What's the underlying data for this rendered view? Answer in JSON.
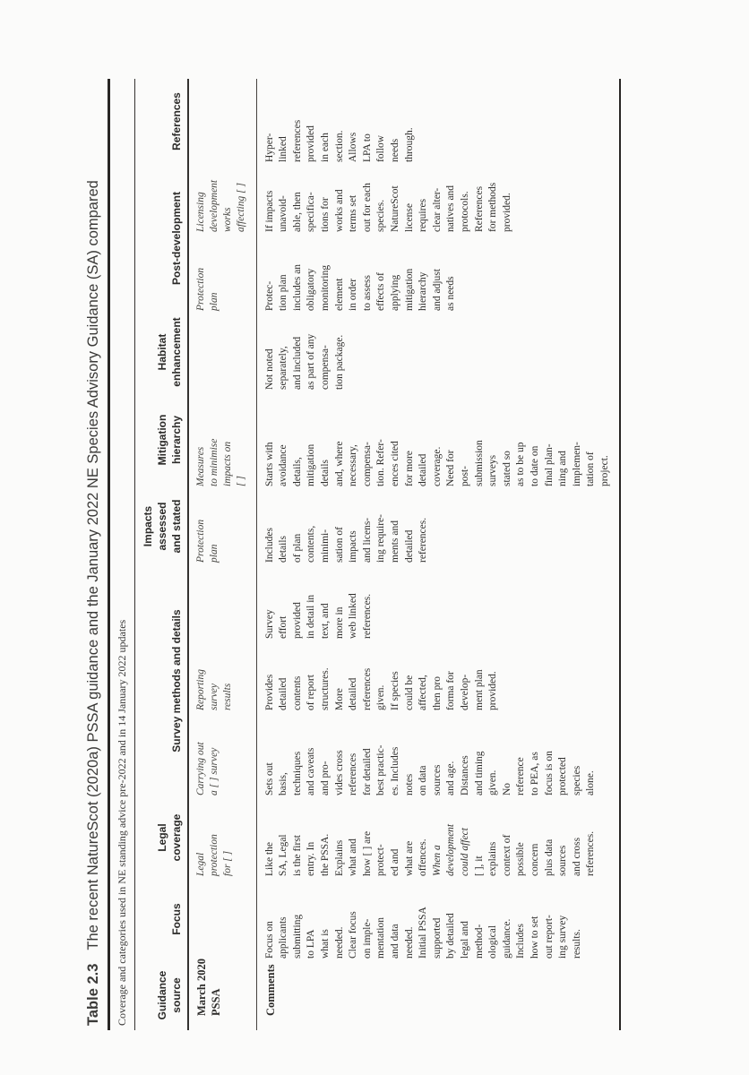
{
  "table": {
    "number": "Table 2.3",
    "title": "The recent NatureScot (2020a) PSSA guidance and the January 2022 NE Species Advisory Guidance (SA) compared",
    "subtitle": "Coverage and categories used in NE standing advice pre-2022 and in 14 January 2022 updates",
    "header": {
      "guidance_source": "Guidance\nsource",
      "focus": "Focus",
      "legal_coverage": "Legal\ncoverage",
      "survey_methods": "Survey methods and details",
      "impacts": "Impacts\nassessed\nand stated",
      "mitigation": "Mitigation\nhierarchy",
      "habitat": "Habitat\nenhancement",
      "post_development": "Post-development",
      "references": "References"
    },
    "march": {
      "label": "March 2020\nPSSA",
      "legal_coverage": [
        [
          "Legal",
          0
        ],
        [
          "protection",
          0
        ],
        [
          "for [ ]",
          0
        ]
      ],
      "survey_carrying": [
        [
          "Carrying out",
          0
        ],
        [
          "a [ ] survey",
          0
        ]
      ],
      "survey_reporting": [
        [
          "Reporting",
          0
        ],
        [
          "survey",
          0
        ],
        [
          "results",
          0
        ]
      ],
      "impacts": [
        [
          "Protection",
          0
        ],
        [
          "plan",
          0
        ]
      ],
      "mitigation": [
        [
          "Measures",
          0
        ],
        [
          "to minimise",
          0
        ],
        [
          "impacts on",
          0
        ],
        [
          "[ ]",
          0
        ]
      ],
      "post_protection": [
        [
          "Protection",
          0
        ],
        [
          "plan",
          0
        ]
      ],
      "post_licensing": [
        [
          "Licensing",
          0
        ],
        [
          "development",
          0
        ],
        [
          "works",
          0
        ],
        [
          "affecting [ ]",
          0
        ]
      ]
    },
    "comments": {
      "label": "Comments",
      "focus": [
        [
          "Focus on",
          0
        ],
        [
          "applicants",
          0
        ],
        [
          "submitting",
          0
        ],
        [
          "to LPA",
          0
        ],
        [
          "what is",
          0
        ],
        [
          "needed.",
          0
        ],
        [
          "Clear focus",
          0
        ],
        [
          "on imple-",
          0
        ],
        [
          "mentation",
          0
        ],
        [
          "and data",
          0
        ],
        [
          "needed.",
          0
        ],
        [
          "Initial PSSA",
          0
        ],
        [
          "supported",
          0
        ],
        [
          "by detailed",
          0
        ],
        [
          "legal and",
          0
        ],
        [
          "method-",
          0
        ],
        [
          "ological",
          0
        ],
        [
          "guidance.",
          0
        ],
        [
          "Includes",
          0
        ],
        [
          "how to set",
          0
        ],
        [
          "out report-",
          0
        ],
        [
          "ing survey",
          0
        ],
        [
          "results.",
          0
        ]
      ],
      "legal_coverage": [
        [
          "Like the",
          0
        ],
        [
          "SA, Legal",
          0
        ],
        [
          "is the first",
          0
        ],
        [
          "entry. In",
          0
        ],
        [
          "the PSSA.",
          0
        ],
        [
          "Explains",
          0
        ],
        [
          "what and",
          0
        ],
        [
          "how [ ] are",
          0
        ],
        [
          "protect-",
          0
        ],
        [
          "ed and",
          0
        ],
        [
          "what are",
          0
        ],
        [
          "offences.",
          0
        ],
        [
          "When a",
          1
        ],
        [
          "development",
          1
        ],
        [
          "could affect",
          1
        ],
        [
          "[ ], it",
          0
        ],
        [
          "explains",
          0
        ],
        [
          "context of",
          0
        ],
        [
          "possible",
          0
        ],
        [
          "concern",
          0
        ],
        [
          "plus data",
          0
        ],
        [
          "sources",
          0
        ],
        [
          "and cross",
          0
        ],
        [
          "references.",
          0
        ]
      ],
      "survey_carrying": [
        [
          "Sets out",
          0
        ],
        [
          "basis,",
          0
        ],
        [
          "techniques",
          0
        ],
        [
          "and caveats",
          0
        ],
        [
          "and pro-",
          0
        ],
        [
          "vides cross",
          0
        ],
        [
          "references",
          0
        ],
        [
          "for detailed",
          0
        ],
        [
          "best practic-",
          0
        ],
        [
          "es. Includes",
          0
        ],
        [
          "notes",
          0
        ],
        [
          "on data",
          0
        ],
        [
          "sources",
          0
        ],
        [
          "and age.",
          0
        ],
        [
          "Distances",
          0
        ],
        [
          "and timing",
          0
        ],
        [
          "given.",
          0
        ],
        [
          "No",
          0
        ],
        [
          "reference",
          0
        ],
        [
          "to PEA, as",
          0
        ],
        [
          "focus is on",
          0
        ],
        [
          "protected",
          0
        ],
        [
          "species",
          0
        ],
        [
          "alone.",
          0
        ]
      ],
      "survey_reporting": [
        [
          "Provides",
          0
        ],
        [
          "detailed",
          0
        ],
        [
          "contents",
          0
        ],
        [
          "of report",
          0
        ],
        [
          "structures.",
          0
        ],
        [
          "More",
          0
        ],
        [
          "detailed",
          0
        ],
        [
          "references",
          0
        ],
        [
          "given.",
          0
        ],
        [
          "If species",
          0
        ],
        [
          "could be",
          0
        ],
        [
          "affected,",
          0
        ],
        [
          "then pro",
          0
        ],
        [
          "forma for",
          0
        ],
        [
          "develop-",
          0
        ],
        [
          "ment plan",
          0
        ],
        [
          "provided.",
          0
        ]
      ],
      "survey_effort": [
        [
          "Survey",
          0
        ],
        [
          "effort",
          0
        ],
        [
          "provided",
          0
        ],
        [
          "in detail in",
          0
        ],
        [
          "text, and",
          0
        ],
        [
          "more in",
          0
        ],
        [
          "web linked",
          0
        ],
        [
          "references.",
          0
        ]
      ],
      "impacts": [
        [
          "Includes",
          0
        ],
        [
          "details",
          0
        ],
        [
          "of plan",
          0
        ],
        [
          "contents,",
          0
        ],
        [
          "minimi-",
          0
        ],
        [
          "sation of",
          0
        ],
        [
          "impacts",
          0
        ],
        [
          "and licens-",
          0
        ],
        [
          "ing require-",
          0
        ],
        [
          "ments and",
          0
        ],
        [
          "detailed",
          0
        ],
        [
          "references.",
          0
        ]
      ],
      "mitigation": [
        [
          "Starts with",
          0
        ],
        [
          "avoidance",
          0
        ],
        [
          "details,",
          0
        ],
        [
          "mitigation",
          0
        ],
        [
          "details",
          0
        ],
        [
          "and, where",
          0
        ],
        [
          "necessary,",
          0
        ],
        [
          "compensa-",
          0
        ],
        [
          "tion. Refer-",
          0
        ],
        [
          "ences cited",
          0
        ],
        [
          "for more",
          0
        ],
        [
          "detailed",
          0
        ],
        [
          "coverage.",
          0
        ],
        [
          "Need for",
          0
        ],
        [
          "post-",
          0
        ],
        [
          "submission",
          0
        ],
        [
          "surveys",
          0
        ],
        [
          "stated so",
          0
        ],
        [
          "as to be up",
          0
        ],
        [
          "to date on",
          0
        ],
        [
          "final plan-",
          0
        ],
        [
          "ning and",
          0
        ],
        [
          "implemen-",
          0
        ],
        [
          "tation of",
          0
        ],
        [
          "project.",
          0
        ]
      ],
      "habitat": [
        [
          "Not noted",
          0
        ],
        [
          "separately,",
          0
        ],
        [
          "and included",
          0
        ],
        [
          "as part of any",
          0
        ],
        [
          "compensa-",
          0
        ],
        [
          "tion package.",
          0
        ]
      ],
      "post_protection": [
        [
          "Protec-",
          0
        ],
        [
          "tion plan",
          0
        ],
        [
          "includes an",
          0
        ],
        [
          "obligatory",
          0
        ],
        [
          "monitoring",
          0
        ],
        [
          "element",
          0
        ],
        [
          "in order",
          0
        ],
        [
          "to assess",
          0
        ],
        [
          "effects of",
          0
        ],
        [
          "applying",
          0
        ],
        [
          "mitigation",
          0
        ],
        [
          "hierarchy",
          0
        ],
        [
          "and adjust",
          0
        ],
        [
          "as needs",
          0
        ]
      ],
      "post_licensing": [
        [
          "If impacts",
          0
        ],
        [
          "unavoid-",
          0
        ],
        [
          "able, then",
          0
        ],
        [
          "specifica-",
          0
        ],
        [
          "tions for",
          0
        ],
        [
          "works and",
          0
        ],
        [
          "terms set",
          0
        ],
        [
          "out for each",
          0
        ],
        [
          "species.",
          0
        ],
        [
          "NatureScot",
          0
        ],
        [
          "license",
          0
        ],
        [
          "requires",
          0
        ],
        [
          "clear alter-",
          0
        ],
        [
          "natives and",
          0
        ],
        [
          "protocols.",
          0
        ],
        [
          "References",
          0
        ],
        [
          "for methods",
          0
        ],
        [
          "provided.",
          0
        ]
      ],
      "references": [
        [
          "Hyper-",
          0
        ],
        [
          "linked",
          0
        ],
        [
          "references",
          0
        ],
        [
          "provided",
          0
        ],
        [
          "in each",
          0
        ],
        [
          "section.",
          0
        ],
        [
          "Allows",
          0
        ],
        [
          "LPA to",
          0
        ],
        [
          "follow",
          0
        ],
        [
          "needs",
          0
        ],
        [
          "through.",
          0
        ]
      ]
    }
  }
}
